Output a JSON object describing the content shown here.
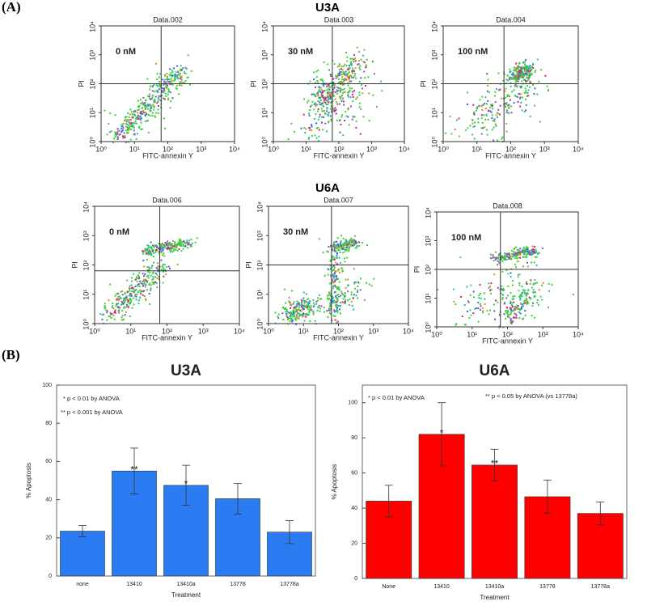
{
  "figure": {
    "panel_labels": [
      "(A)",
      "(B)"
    ],
    "group_titles": [
      "U3A",
      "U6A"
    ]
  },
  "chart_data": [
    {
      "type": "density",
      "title": "Data.002",
      "annotation": "0 nM",
      "x_label": "FITC-annexin Y",
      "y_label": "PI",
      "log_scale": true,
      "xlim": [
        1,
        10000
      ],
      "ylim": [
        1,
        10000
      ],
      "xticks": [
        {
          "value": 1,
          "label": "10⁰"
        },
        {
          "value": 10,
          "label": "10¹"
        },
        {
          "value": 100,
          "label": "10²"
        },
        {
          "value": 1000,
          "label": "10³"
        },
        {
          "value": 10000,
          "label": "10⁴"
        }
      ],
      "yticks": [
        {
          "value": 1,
          "label": "10⁰"
        },
        {
          "value": 10,
          "label": "10¹"
        },
        {
          "value": 100,
          "label": "10²"
        },
        {
          "value": 1000,
          "label": "10³"
        },
        {
          "value": 10000,
          "label": "10⁴"
        }
      ]
    },
    {
      "type": "density",
      "title": "Data.003",
      "annotation": "30 nM",
      "x_label": "FITC-annexin Y",
      "y_label": "PI",
      "log_scale": true,
      "xlim": [
        1,
        10000
      ],
      "ylim": [
        1,
        10000
      ],
      "xticks": [
        {
          "value": 1,
          "label": "10⁰"
        },
        {
          "value": 10,
          "label": "10¹"
        },
        {
          "value": 100,
          "label": "10²"
        },
        {
          "value": 1000,
          "label": "10³"
        },
        {
          "value": 10000,
          "label": "10⁴"
        }
      ],
      "yticks": [
        {
          "value": 1,
          "label": "10⁰"
        },
        {
          "value": 10,
          "label": "10¹"
        },
        {
          "value": 100,
          "label": "10²"
        },
        {
          "value": 1000,
          "label": "10³"
        },
        {
          "value": 10000,
          "label": "10⁴"
        }
      ]
    },
    {
      "type": "density",
      "title": "Data.004",
      "annotation": "100 nM",
      "x_label": "FITC-annexin Y",
      "y_label": "PI",
      "log_scale": true,
      "xlim": [
        1,
        10000
      ],
      "ylim": [
        1,
        10000
      ],
      "xticks": [
        {
          "value": 1,
          "label": "10⁰"
        },
        {
          "value": 10,
          "label": "10¹"
        },
        {
          "value": 100,
          "label": "10²"
        },
        {
          "value": 1000,
          "label": "10³"
        },
        {
          "value": 10000,
          "label": "10⁴"
        }
      ],
      "yticks": [
        {
          "value": 1,
          "label": "10⁰"
        },
        {
          "value": 10,
          "label": "10¹"
        },
        {
          "value": 100,
          "label": "10²"
        },
        {
          "value": 1000,
          "label": "10³"
        },
        {
          "value": 10000,
          "label": "10⁴"
        }
      ]
    },
    {
      "type": "density",
      "title": "Data.006",
      "annotation": "0 nM",
      "x_label": "FITC-annexin Y",
      "y_label": "PI",
      "log_scale": true,
      "xlim": [
        1,
        10000
      ],
      "ylim": [
        1,
        10000
      ],
      "xticks": [
        {
          "value": 1,
          "label": "10⁰"
        },
        {
          "value": 10,
          "label": "10¹"
        },
        {
          "value": 100,
          "label": "10²"
        },
        {
          "value": 1000,
          "label": "10³"
        },
        {
          "value": 10000,
          "label": "10⁴"
        }
      ],
      "yticks": [
        {
          "value": 1,
          "label": "10⁰"
        },
        {
          "value": 10,
          "label": "10¹"
        },
        {
          "value": 100,
          "label": "10²"
        },
        {
          "value": 1000,
          "label": "10³"
        },
        {
          "value": 10000,
          "label": "10⁴"
        }
      ]
    },
    {
      "type": "density",
      "title": "Data.007",
      "annotation": "30 nM",
      "x_label": "FITC-annexin Y",
      "y_label": "PI",
      "log_scale": true,
      "xlim": [
        1,
        10000
      ],
      "ylim": [
        1,
        10000
      ],
      "xticks": [
        {
          "value": 1,
          "label": "10⁰"
        },
        {
          "value": 10,
          "label": "10¹"
        },
        {
          "value": 100,
          "label": "10²"
        },
        {
          "value": 1000,
          "label": "10³"
        },
        {
          "value": 10000,
          "label": "10⁴"
        }
      ],
      "yticks": [
        {
          "value": 1,
          "label": "10⁰"
        },
        {
          "value": 10,
          "label": "10¹"
        },
        {
          "value": 100,
          "label": "10²"
        },
        {
          "value": 1000,
          "label": "10³"
        },
        {
          "value": 10000,
          "label": "10⁴"
        }
      ]
    },
    {
      "type": "density",
      "title": "Data.008",
      "annotation": "100 nM",
      "x_label": "FITC-annexin Y",
      "y_label": "PI",
      "log_scale": true,
      "xlim": [
        1,
        10000
      ],
      "ylim": [
        1,
        10000
      ],
      "xticks": [
        {
          "value": 1,
          "label": "10⁰"
        },
        {
          "value": 10,
          "label": "10¹"
        },
        {
          "value": 100,
          "label": "10²"
        },
        {
          "value": 1000,
          "label": "10³"
        },
        {
          "value": 10000,
          "label": "10⁴"
        }
      ],
      "yticks": [
        {
          "value": 1,
          "label": "10⁰"
        },
        {
          "value": 10,
          "label": "10¹"
        },
        {
          "value": 100,
          "label": "10²"
        },
        {
          "value": 1000,
          "label": "10³"
        },
        {
          "value": 10000,
          "label": "10⁴"
        }
      ]
    },
    {
      "type": "bar",
      "title": "U3A",
      "x_label": "Treatment",
      "y_label": "% Apoptosis",
      "categories": [
        "none",
        "13410",
        "13410a",
        "13778",
        "13778a"
      ],
      "series": [
        {
          "color": "#2b7cf2",
          "values": [
            23.5,
            55,
            47.5,
            40.5,
            23
          ],
          "errors": [
            3,
            12,
            10.5,
            8,
            6
          ]
        }
      ],
      "significance": [
        null,
        "**",
        "*",
        null,
        null
      ],
      "annotations": [
        "*   p < 0.01 by ANOVA",
        "**  p < 0.001 by ANOVA"
      ],
      "ylim": [
        0,
        100
      ],
      "yticks": [
        0,
        20,
        40,
        60,
        80,
        100
      ]
    },
    {
      "type": "bar",
      "title": "U6A",
      "x_label": "Treatment",
      "y_label": "% Apoptosis",
      "categories": [
        "None",
        "13410",
        "13410a",
        "13778",
        "13778a"
      ],
      "series": [
        {
          "color": "#ff0000",
          "values": [
            44,
            82,
            64.5,
            46.5,
            37
          ],
          "errors": [
            9,
            18,
            9,
            9.5,
            6.5
          ]
        }
      ],
      "significance": [
        null,
        "*",
        "**",
        null,
        null
      ],
      "annotations": [
        "*  p < 0.01 by ANOVA",
        "**  p < 0.05 by ANOVA (vs 13778a)"
      ],
      "ylim": [
        0,
        110
      ],
      "yticks": [
        0,
        20,
        40,
        60,
        80,
        100
      ]
    }
  ]
}
